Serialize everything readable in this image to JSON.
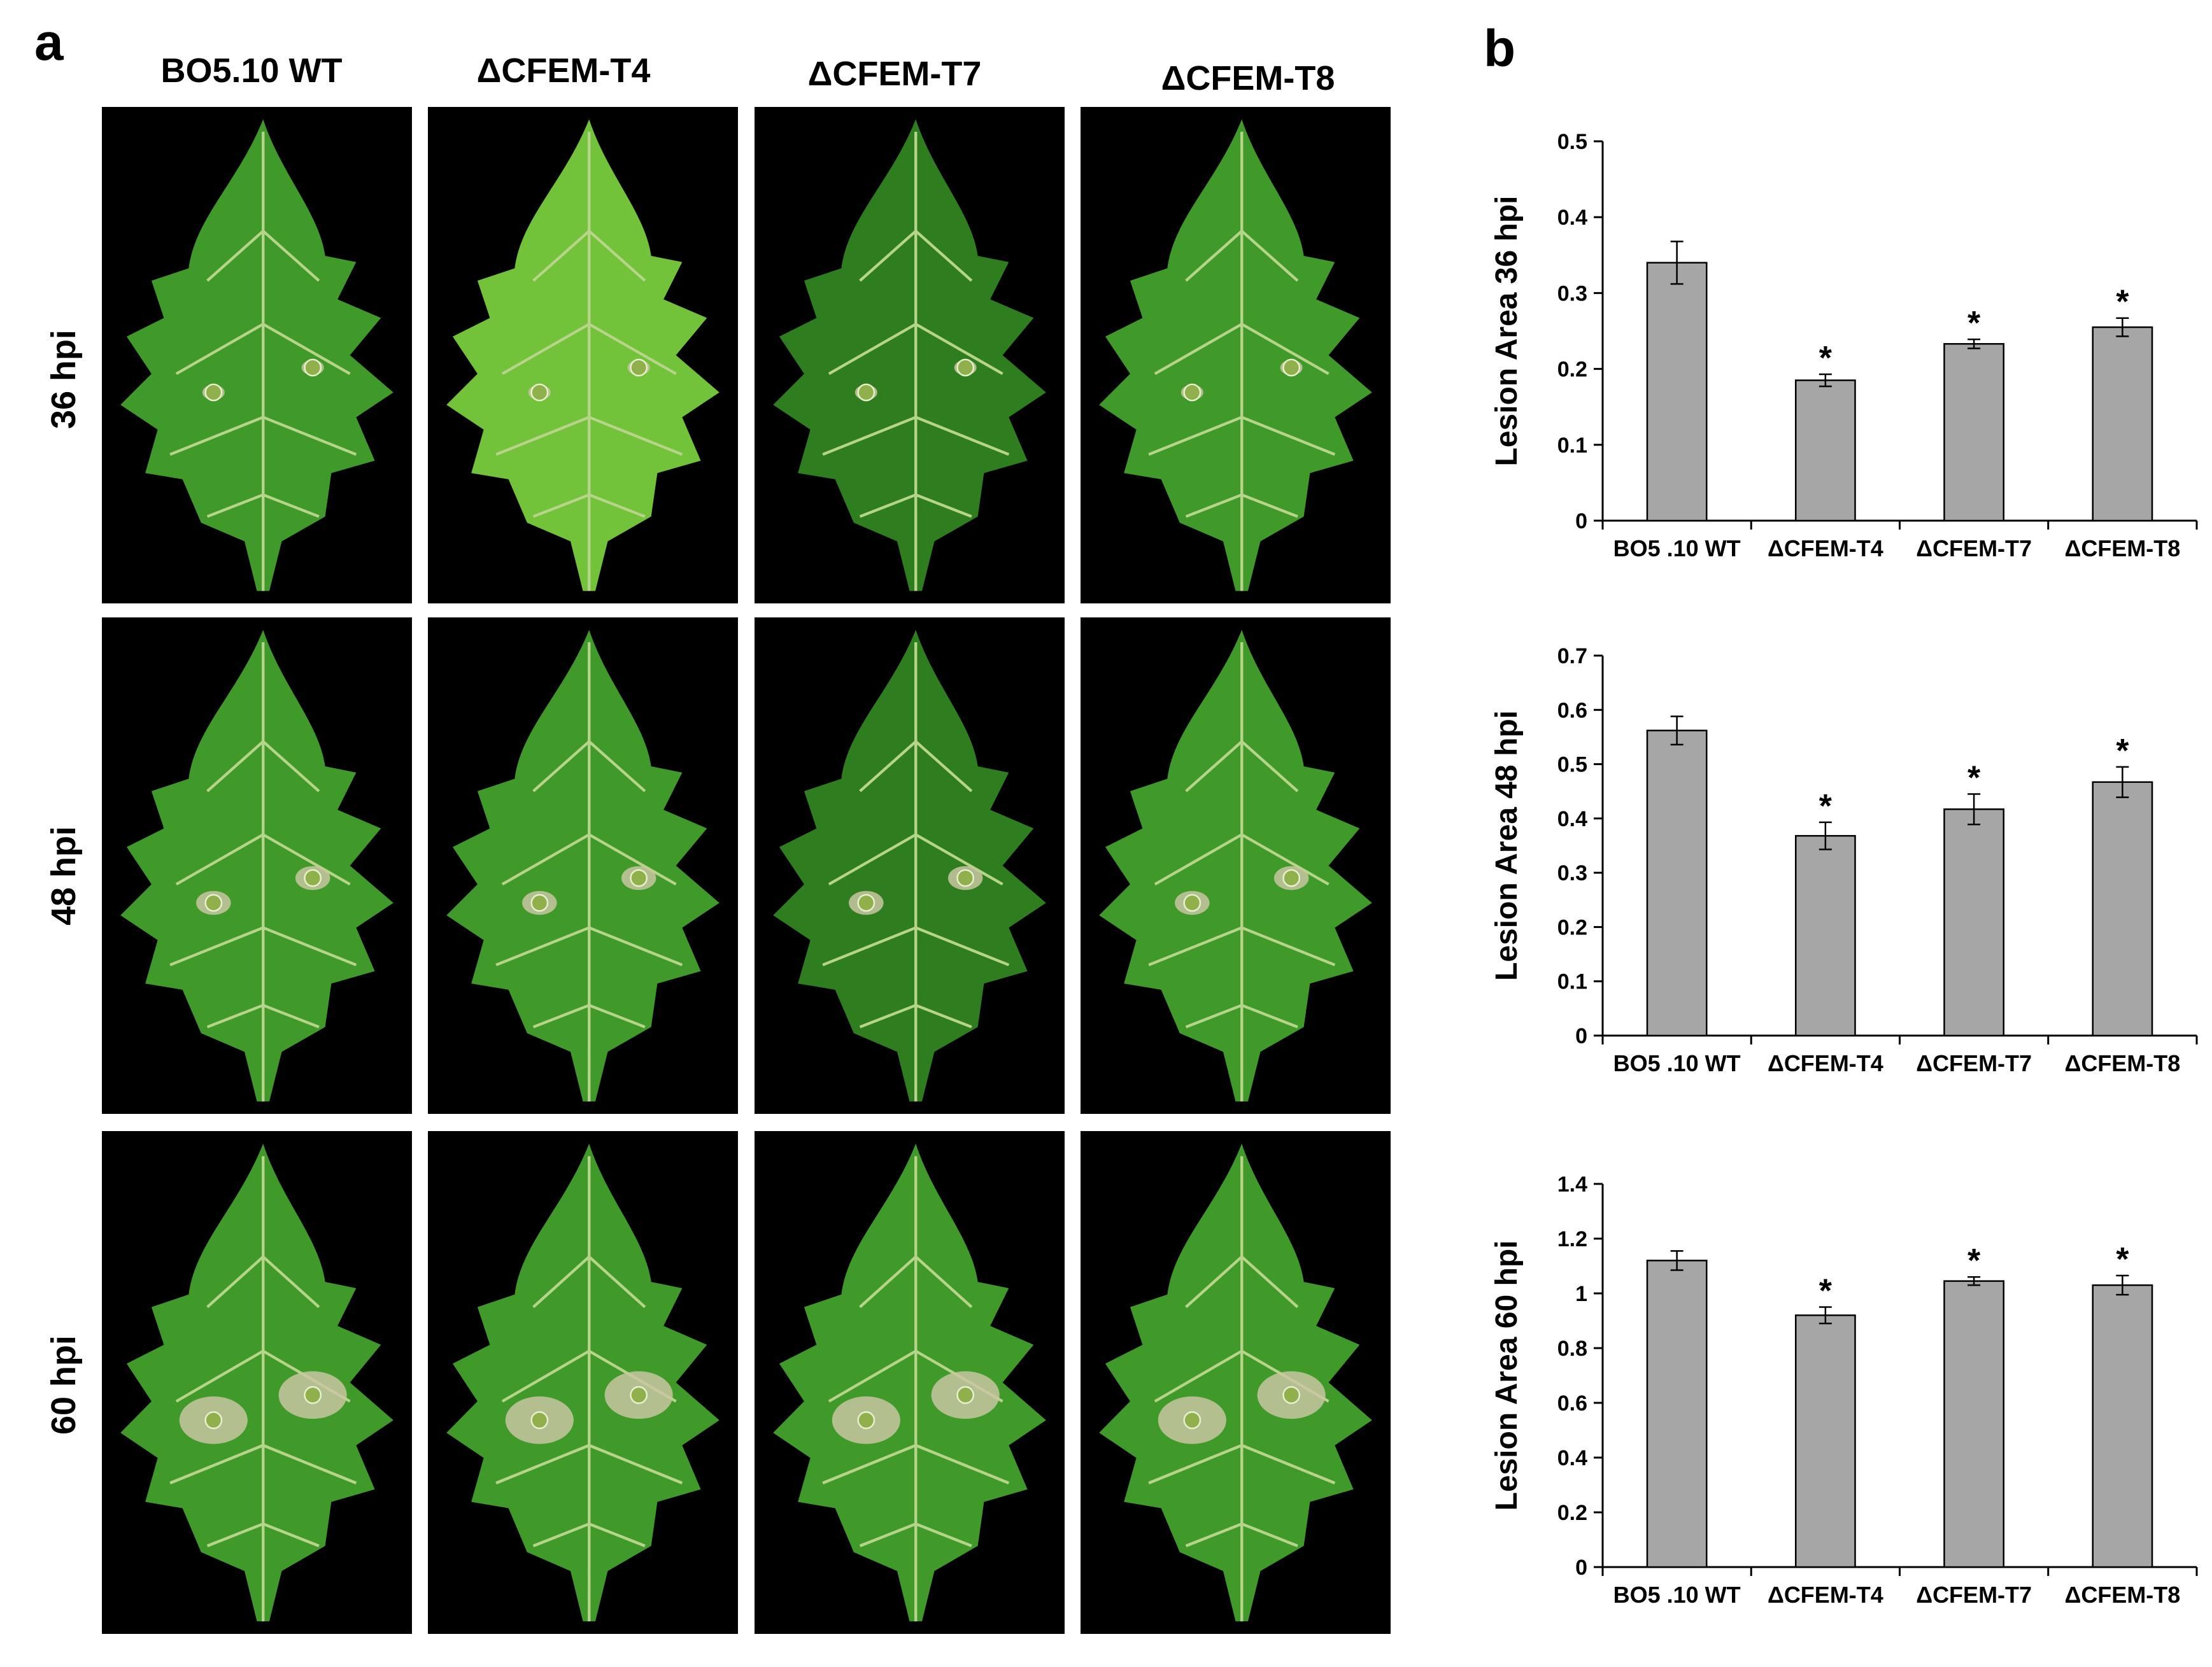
{
  "panels": {
    "a": "a",
    "b": "b"
  },
  "columns": [
    "BO5.10 WT",
    "ΔCFEM-T4",
    "ΔCFEM-T7",
    "ΔCFEM-T8"
  ],
  "rows": [
    "36 hpi",
    "48 hpi",
    "60 hpi"
  ],
  "photos": {
    "leaf_color_dark": "#2e7d1f",
    "leaf_color_mid": "#3f9a2a",
    "leaf_color_light": "#72c23a",
    "lesion_color": "#c9c6a1",
    "vein_color": "#b8d48a"
  },
  "chart_data": [
    {
      "type": "bar",
      "categories": [
        "BO5 .10 WT",
        "ΔCFEM-T4",
        "ΔCFEM-T7",
        "ΔCFEM-T8"
      ],
      "values": [
        0.34,
        0.185,
        0.233,
        0.255
      ],
      "errors": [
        0.028,
        0.008,
        0.006,
        0.012
      ],
      "significance": [
        "",
        "*",
        "*",
        "*"
      ],
      "ylabel": "Lesion Area 36 hpi",
      "ylim": [
        0,
        0.5
      ],
      "yticks": [
        "0",
        "0.1",
        "0.2",
        "0.3",
        "0.4",
        "0.5"
      ],
      "bar_color": "#a6a6a6"
    },
    {
      "type": "bar",
      "categories": [
        "BO5 .10 WT",
        "ΔCFEM-T4",
        "ΔCFEM-T7",
        "ΔCFEM-T8"
      ],
      "values": [
        0.562,
        0.368,
        0.417,
        0.467
      ],
      "errors": [
        0.026,
        0.025,
        0.028,
        0.028
      ],
      "significance": [
        "",
        "*",
        "*",
        "*"
      ],
      "ylabel": "Lesion Area 48 hpi",
      "ylim": [
        0,
        0.7
      ],
      "yticks": [
        "0",
        "0.1",
        "0.2",
        "0.3",
        "0.4",
        "0.5",
        "0.6",
        "0.7"
      ],
      "bar_color": "#a6a6a6"
    },
    {
      "type": "bar",
      "categories": [
        "BO5 .10 WT",
        "ΔCFEM-T4",
        "ΔCFEM-T7",
        "ΔCFEM-T8"
      ],
      "values": [
        1.12,
        0.92,
        1.045,
        1.03
      ],
      "errors": [
        0.035,
        0.03,
        0.015,
        0.035
      ],
      "significance": [
        "",
        "*",
        "*",
        "*"
      ],
      "ylabel": "Lesion Area 60 hpi",
      "ylim": [
        0,
        1.4
      ],
      "yticks": [
        "0",
        "0.2",
        "0.4",
        "0.6",
        "0.8",
        "1",
        "1.2",
        "1.4"
      ],
      "bar_color": "#a6a6a6"
    }
  ]
}
